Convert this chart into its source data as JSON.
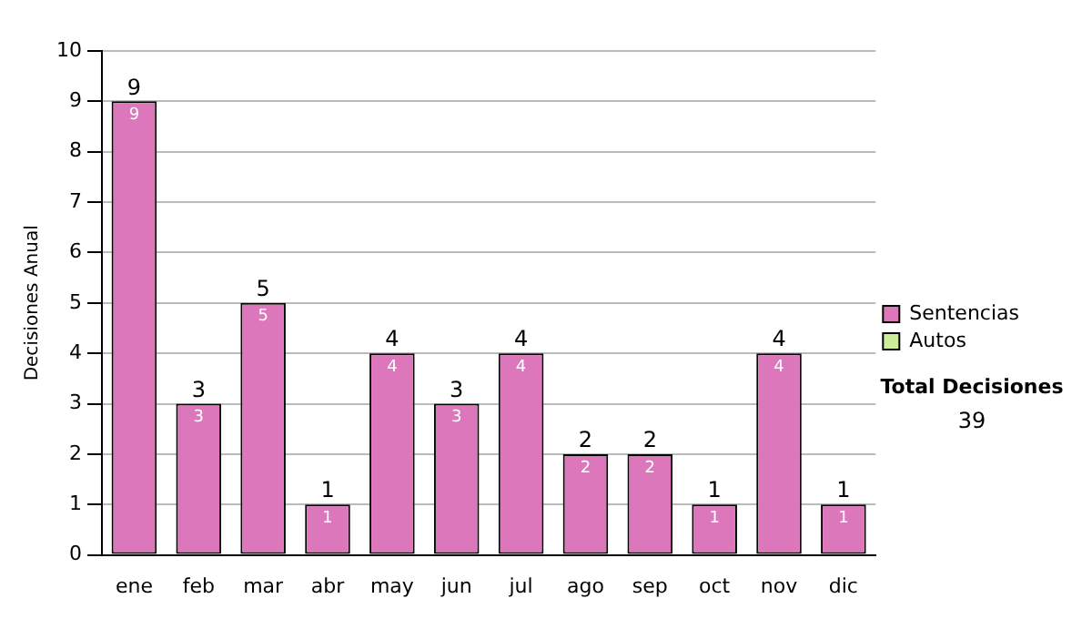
{
  "chart_data": {
    "type": "bar",
    "stacked": true,
    "ylabel": "Decisiones Anual",
    "categories": [
      "ene",
      "feb",
      "mar",
      "abr",
      "may",
      "jun",
      "jul",
      "ago",
      "sep",
      "oct",
      "nov",
      "dic"
    ],
    "series": [
      {
        "name": "Sentencias",
        "color": "#dd77bb",
        "values": [
          9,
          3,
          5,
          1,
          4,
          3,
          4,
          2,
          2,
          1,
          4,
          1
        ],
        "value_labels": [
          "9",
          "3",
          "5",
          "1",
          "4",
          "3",
          "4",
          "2",
          "2",
          "1",
          "4",
          "1"
        ]
      },
      {
        "name": "Autos",
        "color": "#ccee99",
        "values": [
          0,
          0,
          0,
          0,
          0,
          0,
          0,
          0,
          0,
          0,
          0,
          0
        ]
      }
    ],
    "totals": [
      "9",
      "3",
      "5",
      "1",
      "4",
      "3",
      "4",
      "2",
      "2",
      "1",
      "4",
      "1"
    ],
    "ylim": [
      0,
      10
    ],
    "yticks": [
      0,
      1,
      2,
      3,
      4,
      5,
      6,
      7,
      8,
      9,
      10
    ],
    "grid": "y",
    "legend": "right",
    "annotations": [
      "Total Decisiones",
      "39"
    ]
  }
}
